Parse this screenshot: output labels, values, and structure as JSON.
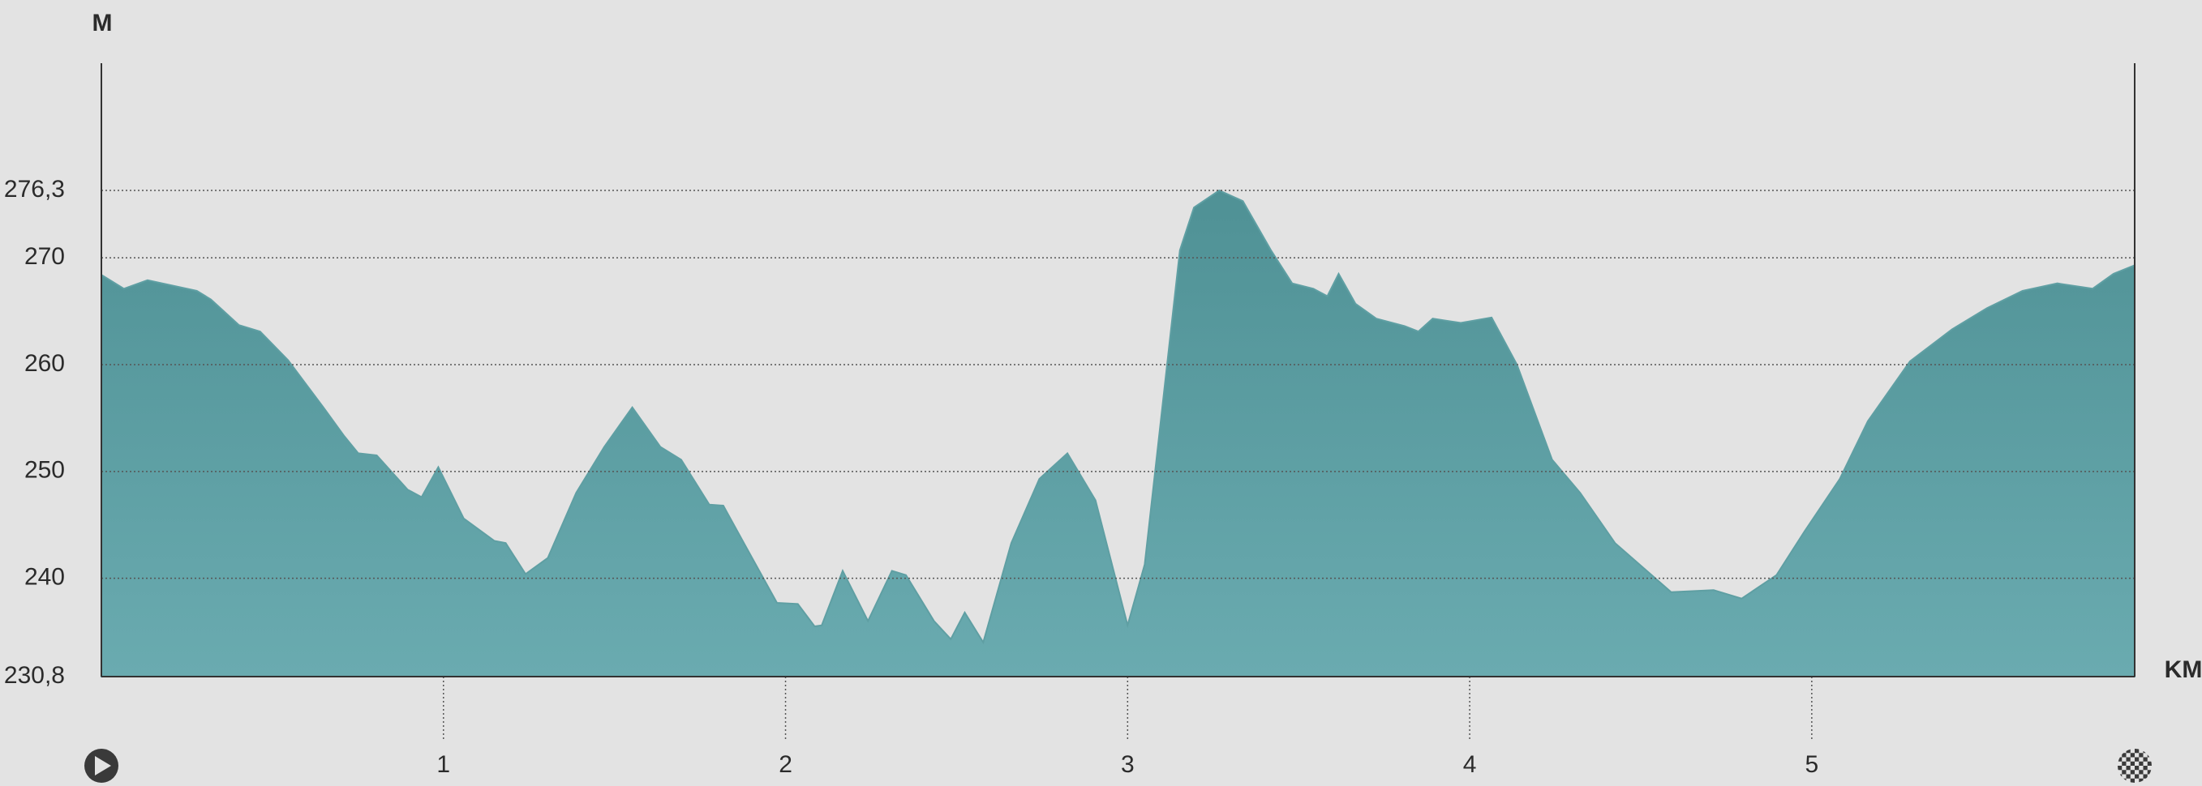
{
  "chart_data": {
    "type": "area",
    "y_label": "M",
    "x_label": "KM",
    "color": "#5f9fa3",
    "grid": true,
    "xlim": [
      0,
      5.944
    ],
    "ylim": [
      230.8,
      276.3
    ],
    "xticks": [
      1,
      2,
      3,
      4,
      5
    ],
    "yticks": [
      {
        "value": 230.8,
        "label": "230,8"
      },
      240,
      250,
      260,
      270,
      {
        "value": 276.3,
        "label": "276,3"
      }
    ],
    "x": [
      0,
      0.066,
      0.135,
      0.279,
      0.32,
      0.402,
      0.464,
      0.546,
      0.649,
      0.71,
      0.751,
      0.805,
      0.895,
      0.936,
      0.985,
      1.059,
      1.149,
      1.182,
      1.24,
      1.305,
      1.388,
      1.47,
      1.552,
      1.634,
      1.695,
      1.777,
      1.818,
      1.88,
      1.975,
      2.036,
      2.085,
      2.106,
      2.167,
      2.241,
      2.311,
      2.352,
      2.434,
      2.483,
      2.524,
      2.578,
      2.66,
      2.742,
      2.824,
      2.906,
      3.0,
      3.05,
      3.153,
      3.194,
      3.268,
      3.337,
      3.419,
      3.481,
      3.543,
      3.584,
      3.617,
      3.666,
      3.727,
      3.81,
      3.85,
      3.892,
      3.974,
      4.064,
      4.138,
      4.241,
      4.323,
      4.425,
      4.589,
      4.713,
      4.795,
      4.897,
      4.979,
      5.082,
      5.164,
      5.287,
      5.41,
      5.513,
      5.616,
      5.718,
      5.821,
      5.882,
      5.944
    ],
    "values": [
      268.4,
      267.1,
      267.9,
      266.9,
      266.1,
      263.7,
      263.1,
      260.4,
      256,
      253.3,
      251.7,
      251.5,
      248.3,
      247.6,
      250.4,
      245.6,
      243.5,
      243.3,
      240.4,
      241.9,
      248,
      252.3,
      256,
      252.3,
      251.1,
      246.9,
      246.8,
      243.2,
      237.7,
      237.6,
      235.5,
      235.6,
      240.7,
      236,
      240.7,
      240.3,
      236,
      234.3,
      236.8,
      234,
      243.3,
      249.3,
      251.7,
      247.3,
      235.6,
      241.3,
      270.7,
      274.7,
      276.3,
      275.3,
      270.7,
      267.6,
      267.1,
      266.4,
      268.5,
      265.7,
      264.3,
      263.6,
      263.1,
      264.3,
      263.9,
      264.4,
      260,
      251.1,
      248,
      243.3,
      238.7,
      238.9,
      238.1,
      240.3,
      244.4,
      249.3,
      254.7,
      260.3,
      263.3,
      265.3,
      266.9,
      267.6,
      267.1,
      268.5,
      269.3
    ]
  }
}
